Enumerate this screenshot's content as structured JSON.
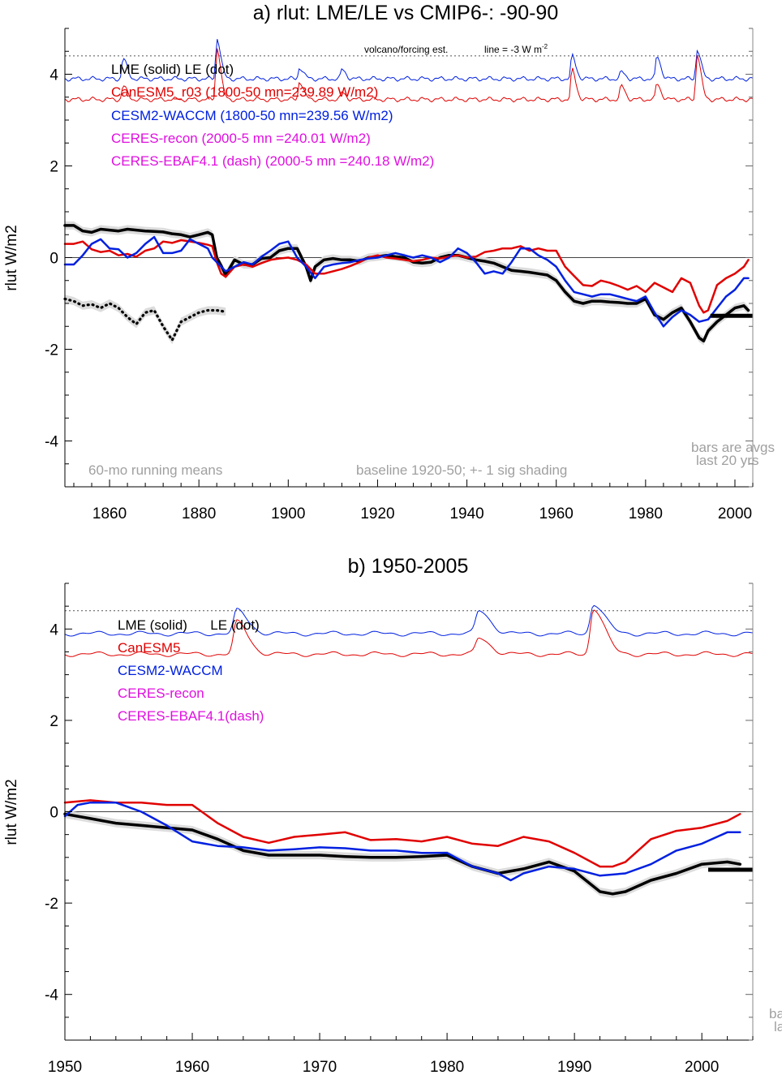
{
  "colors": {
    "lme": "#000000",
    "canesm": "#e00000",
    "cesm": "#0020e0",
    "ceres": "#e010e0",
    "note": "#a0a0a0",
    "band": "#dcdcdc"
  },
  "chart_data": [
    {
      "type": "line",
      "title": "a) rlut: LME/LE vs CMIP6-: -90-90",
      "xlabel": "",
      "ylabel": "rlut W/m2",
      "xlim": [
        1850,
        2004
      ],
      "ylim": [
        -5,
        5
      ],
      "xticks": [
        1860,
        1880,
        1900,
        1920,
        1940,
        1960,
        1980,
        2000
      ],
      "yticks": [
        -4,
        -2,
        0,
        2,
        4
      ],
      "zero_line": 0,
      "volcano_ref": {
        "level": 4.4,
        "label": "volcano/forcing est.",
        "line_label": "line = -3 W m",
        "line_label_sup": "-2"
      },
      "legend": [
        {
          "text": "LME (solid)   LE (dot)",
          "color": "lme"
        },
        {
          "text": "CanESM5_r03 (1800-50 mn=239.89 W/m2)",
          "color": "canesm"
        },
        {
          "text": "CESM2-WACCM (1800-50 mn=239.56 W/m2)",
          "color": "cesm"
        },
        {
          "text": "CERES-recon (2000-5 mn =240.01 W/m2)",
          "color": "ceres"
        },
        {
          "text": "CERES-EBAF4.1 (dash) (2000-5 mn =240.18 W/m2)",
          "color": "ceres"
        }
      ],
      "annotations": {
        "running_mean": "60-mo running means",
        "baseline": "baseline 1920-50; +- 1 sig shading",
        "bars_line1": "bars are avgs",
        "bars_line2": "last 20 yrs"
      },
      "bar_avg": {
        "x": [
          1994.5,
          2004
        ],
        "y": -1.27
      },
      "series": [
        {
          "name": "LME (solid)",
          "color": "lme",
          "width": 3.5,
          "band": 0.09,
          "x": [
            1850,
            1852,
            1854,
            1856,
            1858,
            1860,
            1862,
            1864,
            1866,
            1868,
            1870,
            1872,
            1874,
            1876,
            1878,
            1880,
            1882,
            1883,
            1884,
            1885,
            1886,
            1888,
            1890,
            1892,
            1894,
            1896,
            1898,
            1900,
            1902,
            1904,
            1905,
            1906,
            1908,
            1910,
            1912,
            1914,
            1916,
            1918,
            1920,
            1922,
            1924,
            1926,
            1928,
            1930,
            1932,
            1934,
            1936,
            1938,
            1940,
            1942,
            1944,
            1946,
            1948,
            1950,
            1952,
            1954,
            1956,
            1958,
            1960,
            1962,
            1964,
            1966,
            1968,
            1970,
            1972,
            1974,
            1976,
            1978,
            1980,
            1982,
            1984,
            1986,
            1988,
            1990,
            1992,
            1993,
            1994,
            1996,
            1998,
            2000,
            2002,
            2003
          ],
          "y": [
            0.7,
            0.7,
            0.58,
            0.55,
            0.62,
            0.6,
            0.58,
            0.62,
            0.6,
            0.58,
            0.57,
            0.56,
            0.52,
            0.5,
            0.45,
            0.5,
            0.55,
            0.5,
            0.0,
            -0.18,
            -0.38,
            -0.05,
            -0.15,
            -0.15,
            -0.02,
            0.0,
            0.15,
            0.2,
            0.2,
            -0.2,
            -0.5,
            -0.2,
            -0.05,
            -0.02,
            -0.05,
            -0.05,
            -0.08,
            0.0,
            0.02,
            0.05,
            0.02,
            0.0,
            -0.1,
            -0.12,
            -0.1,
            0.0,
            0.05,
            0.05,
            0.0,
            -0.05,
            -0.08,
            -0.12,
            -0.2,
            -0.28,
            -0.3,
            -0.32,
            -0.35,
            -0.38,
            -0.5,
            -0.75,
            -0.95,
            -1.0,
            -0.95,
            -0.95,
            -0.97,
            -0.98,
            -1.0,
            -1.0,
            -0.9,
            -1.25,
            -1.35,
            -1.2,
            -1.1,
            -1.4,
            -1.75,
            -1.82,
            -1.6,
            -1.4,
            -1.25,
            -1.1,
            -1.05,
            -1.15
          ]
        },
        {
          "name": "LE (dot)",
          "color": "lme",
          "width": 3,
          "band": 0.09,
          "dotted": true,
          "x": [
            1850,
            1852,
            1854,
            1856,
            1858,
            1860,
            1862,
            1864,
            1866,
            1868,
            1870,
            1872,
            1874,
            1876,
            1878,
            1880,
            1882,
            1884,
            1886
          ],
          "y": [
            -0.9,
            -0.95,
            -1.05,
            -1.02,
            -1.1,
            -1.0,
            -1.1,
            -1.3,
            -1.45,
            -1.2,
            -1.15,
            -1.5,
            -1.8,
            -1.4,
            -1.3,
            -1.2,
            -1.15,
            -1.15,
            -1.18
          ]
        },
        {
          "name": "CanESM5",
          "color": "canesm",
          "width": 2.5,
          "x": [
            1850,
            1852,
            1854,
            1856,
            1858,
            1860,
            1862,
            1864,
            1866,
            1868,
            1870,
            1872,
            1874,
            1876,
            1878,
            1880,
            1882,
            1883,
            1884,
            1885,
            1886,
            1888,
            1890,
            1892,
            1894,
            1896,
            1898,
            1900,
            1902,
            1904,
            1906,
            1908,
            1910,
            1912,
            1914,
            1916,
            1918,
            1920,
            1922,
            1924,
            1926,
            1928,
            1930,
            1932,
            1934,
            1936,
            1938,
            1940,
            1942,
            1944,
            1946,
            1948,
            1950,
            1952,
            1954,
            1956,
            1958,
            1960,
            1962,
            1964,
            1966,
            1968,
            1970,
            1972,
            1974,
            1976,
            1978,
            1980,
            1982,
            1984,
            1986,
            1988,
            1990,
            1992,
            1993,
            1994,
            1996,
            1998,
            2000,
            2002,
            2003
          ],
          "y": [
            0.3,
            0.3,
            0.35,
            0.18,
            0.12,
            0.15,
            0.05,
            0.08,
            0.02,
            0.15,
            0.2,
            0.35,
            0.32,
            0.38,
            0.35,
            0.32,
            0.28,
            0.25,
            -0.1,
            -0.35,
            -0.42,
            -0.2,
            -0.15,
            -0.2,
            -0.12,
            -0.05,
            -0.02,
            0.0,
            -0.05,
            -0.15,
            -0.35,
            -0.35,
            -0.3,
            -0.25,
            -0.18,
            -0.1,
            0.0,
            0.05,
            0.0,
            -0.02,
            -0.05,
            -0.08,
            -0.05,
            0.0,
            -0.02,
            0.02,
            0.05,
            0.0,
            0.02,
            0.12,
            0.15,
            0.2,
            0.2,
            0.25,
            0.15,
            0.2,
            0.15,
            0.15,
            -0.2,
            -0.4,
            -0.6,
            -0.62,
            -0.5,
            -0.55,
            -0.62,
            -0.7,
            -0.62,
            -0.75,
            -0.55,
            -0.65,
            -0.75,
            -0.45,
            -0.55,
            -1.05,
            -1.2,
            -1.15,
            -0.6,
            -0.45,
            -0.35,
            -0.2,
            -0.05
          ]
        },
        {
          "name": "CESM2-WACCM",
          "color": "cesm",
          "width": 2.5,
          "x": [
            1850,
            1852,
            1854,
            1856,
            1858,
            1860,
            1862,
            1864,
            1866,
            1868,
            1870,
            1872,
            1874,
            1876,
            1878,
            1880,
            1882,
            1883,
            1884,
            1886,
            1888,
            1890,
            1892,
            1894,
            1896,
            1898,
            1900,
            1902,
            1904,
            1906,
            1908,
            1910,
            1912,
            1914,
            1916,
            1918,
            1920,
            1922,
            1924,
            1926,
            1928,
            1930,
            1932,
            1934,
            1936,
            1938,
            1940,
            1942,
            1944,
            1946,
            1948,
            1950,
            1952,
            1954,
            1956,
            1958,
            1960,
            1962,
            1964,
            1966,
            1968,
            1970,
            1972,
            1974,
            1976,
            1978,
            1980,
            1982,
            1984,
            1986,
            1988,
            1990,
            1992,
            1994,
            1996,
            1998,
            2000,
            2002,
            2003
          ],
          "y": [
            -0.15,
            -0.15,
            0.05,
            0.3,
            0.4,
            0.2,
            0.18,
            0.0,
            0.1,
            0.3,
            0.45,
            0.1,
            0.1,
            0.15,
            0.4,
            0.3,
            0.2,
            0.0,
            -0.1,
            -0.3,
            -0.2,
            -0.1,
            -0.15,
            0.02,
            0.15,
            0.3,
            0.35,
            0.0,
            -0.2,
            -0.45,
            -0.2,
            -0.15,
            -0.12,
            -0.1,
            -0.05,
            -0.02,
            0.0,
            0.05,
            0.1,
            0.05,
            0.0,
            0.05,
            0.0,
            -0.1,
            0.0,
            0.2,
            0.1,
            -0.1,
            -0.35,
            -0.3,
            -0.35,
            -0.1,
            0.2,
            0.2,
            0.05,
            -0.05,
            -0.2,
            -0.5,
            -0.75,
            -0.8,
            -0.85,
            -0.8,
            -0.8,
            -0.85,
            -0.9,
            -0.95,
            -0.85,
            -1.2,
            -1.5,
            -1.3,
            -1.15,
            -1.25,
            -1.4,
            -1.35,
            -1.1,
            -0.85,
            -0.7,
            -0.45,
            -0.45
          ]
        }
      ]
    },
    {
      "type": "line",
      "title": "b) 1950-2005",
      "xlabel": "",
      "ylabel": "rlut W/m2",
      "xlim": [
        1950,
        2004
      ],
      "ylim": [
        -5,
        5
      ],
      "xticks": [
        1950,
        1960,
        1970,
        1980,
        1990,
        2000
      ],
      "yticks": [
        -4,
        -2,
        0,
        2,
        4
      ],
      "zero_line": 0,
      "volcano_ref": {
        "level": 4.4
      },
      "legend": [
        {
          "text": "LME (solid)      LE (dot)",
          "color": "lme"
        },
        {
          "text": "CanESM5",
          "color": "canesm"
        },
        {
          "text": "CESM2-WACCM",
          "color": "cesm"
        },
        {
          "text": "CERES-recon",
          "color": "ceres"
        },
        {
          "text": "CERES-EBAF4.1(dash)",
          "color": "ceres"
        }
      ],
      "annotations": {
        "bars_line1": "ba",
        "bars_line2": "la"
      },
      "bar_avg": {
        "x": [
          2000.5,
          2004
        ],
        "y": -1.27
      },
      "series": [
        {
          "name": "LME (solid)",
          "color": "lme",
          "width": 3.5,
          "band": 0.09,
          "x": [
            1950,
            1952,
            1954,
            1956,
            1958,
            1960,
            1962,
            1964,
            1966,
            1968,
            1970,
            1972,
            1974,
            1976,
            1978,
            1980,
            1982,
            1984,
            1986,
            1988,
            1990,
            1992,
            1993,
            1994,
            1996,
            1998,
            2000,
            2002,
            2003
          ],
          "y": [
            -0.05,
            -0.15,
            -0.25,
            -0.3,
            -0.35,
            -0.4,
            -0.6,
            -0.85,
            -0.95,
            -0.95,
            -0.95,
            -0.98,
            -1.0,
            -1.0,
            -0.98,
            -0.95,
            -1.2,
            -1.35,
            -1.25,
            -1.1,
            -1.3,
            -1.75,
            -1.8,
            -1.75,
            -1.5,
            -1.35,
            -1.15,
            -1.1,
            -1.15
          ]
        },
        {
          "name": "CanESM5",
          "color": "canesm",
          "width": 2.5,
          "x": [
            1950,
            1952,
            1954,
            1956,
            1958,
            1960,
            1962,
            1964,
            1966,
            1968,
            1970,
            1972,
            1974,
            1976,
            1978,
            1980,
            1982,
            1984,
            1986,
            1988,
            1990,
            1992,
            1993,
            1994,
            1996,
            1998,
            2000,
            2002,
            2003
          ],
          "y": [
            0.2,
            0.25,
            0.2,
            0.2,
            0.15,
            0.15,
            -0.25,
            -0.55,
            -0.68,
            -0.55,
            -0.5,
            -0.45,
            -0.62,
            -0.6,
            -0.65,
            -0.55,
            -0.7,
            -0.75,
            -0.55,
            -0.65,
            -0.9,
            -1.2,
            -1.2,
            -1.1,
            -0.6,
            -0.42,
            -0.35,
            -0.2,
            -0.05
          ]
        },
        {
          "name": "CESM2-WACCM",
          "color": "cesm",
          "width": 2.5,
          "x": [
            1950,
            1951,
            1952,
            1954,
            1956,
            1958,
            1960,
            1962,
            1964,
            1966,
            1968,
            1970,
            1972,
            1974,
            1976,
            1978,
            1980,
            1982,
            1984,
            1985,
            1986,
            1988,
            1990,
            1992,
            1994,
            1996,
            1998,
            2000,
            2002,
            2003
          ],
          "y": [
            -0.1,
            0.15,
            0.2,
            0.2,
            0.0,
            -0.3,
            -0.65,
            -0.75,
            -0.78,
            -0.85,
            -0.82,
            -0.78,
            -0.8,
            -0.85,
            -0.85,
            -0.9,
            -0.9,
            -1.2,
            -1.35,
            -1.5,
            -1.35,
            -1.2,
            -1.25,
            -1.4,
            -1.35,
            -1.15,
            -0.85,
            -0.7,
            -0.45,
            -0.45
          ]
        }
      ]
    }
  ],
  "forcing_panels": [
    {
      "volcano_blue_peaks": [
        [
          1884,
          4.8
        ],
        [
          1863,
          4.35
        ],
        [
          1902.5,
          4.15
        ],
        [
          1912,
          4.1
        ],
        [
          1963.5,
          4.4
        ],
        [
          1974.5,
          4.05
        ],
        [
          1982.5,
          4.4
        ],
        [
          1991.5,
          4.55
        ]
      ],
      "volcano_red_peaks": [
        [
          1884,
          4.6
        ],
        [
          1863,
          3.75
        ],
        [
          1902.5,
          3.85
        ],
        [
          1912,
          3.6
        ],
        [
          1963.5,
          4.1
        ],
        [
          1974.5,
          3.75
        ],
        [
          1982.5,
          3.8
        ],
        [
          1991.5,
          4.45
        ]
      ]
    },
    {
      "volcano_blue_peaks": [
        [
          1963.5,
          4.4
        ],
        [
          1982.5,
          4.4
        ],
        [
          1991.5,
          4.55
        ]
      ],
      "volcano_red_peaks": [
        [
          1963.5,
          4.15
        ],
        [
          1982.5,
          3.8
        ],
        [
          1991.5,
          4.45
        ]
      ]
    }
  ]
}
